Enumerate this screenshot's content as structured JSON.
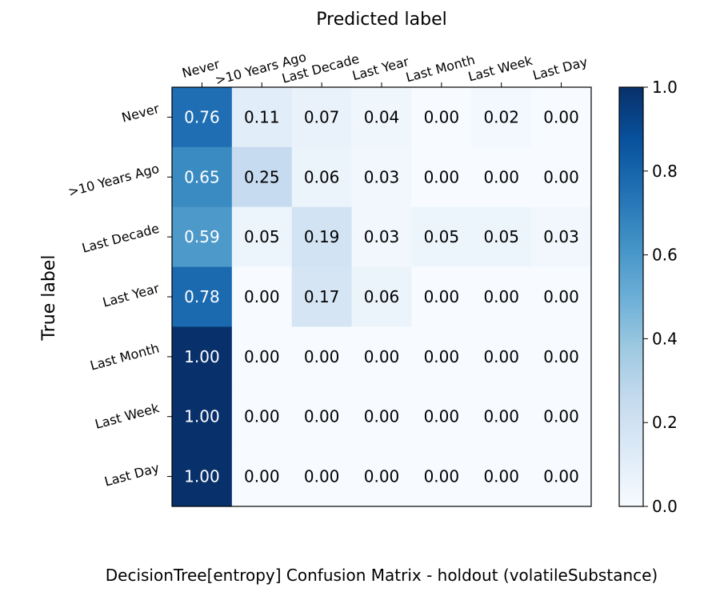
{
  "chart_data": {
    "type": "heatmap",
    "title": "DecisionTree[entropy] Confusion Matrix - holdout (volatileSubstance)",
    "xlabel": "Predicted label",
    "ylabel": "True label",
    "x_categories": [
      "Never",
      ">10 Years Ago",
      "Last Decade",
      "Last Year",
      "Last Month",
      "Last Week",
      "Last Day"
    ],
    "y_categories": [
      "Never",
      ">10 Years Ago",
      "Last Decade",
      "Last Year",
      "Last Month",
      "Last Week",
      "Last Day"
    ],
    "values": [
      [
        0.76,
        0.11,
        0.07,
        0.04,
        0.0,
        0.02,
        0.0
      ],
      [
        0.65,
        0.25,
        0.06,
        0.03,
        0.0,
        0.0,
        0.0
      ],
      [
        0.59,
        0.05,
        0.19,
        0.03,
        0.05,
        0.05,
        0.03
      ],
      [
        0.78,
        0.0,
        0.17,
        0.06,
        0.0,
        0.0,
        0.0
      ],
      [
        1.0,
        0.0,
        0.0,
        0.0,
        0.0,
        0.0,
        0.0
      ],
      [
        1.0,
        0.0,
        0.0,
        0.0,
        0.0,
        0.0,
        0.0
      ],
      [
        1.0,
        0.0,
        0.0,
        0.0,
        0.0,
        0.0,
        0.0
      ]
    ],
    "value_format": "0.00",
    "colormap": "Blues",
    "colorbar": {
      "range": [
        0.0,
        1.0
      ],
      "ticks": [
        "0.0",
        "0.2",
        "0.4",
        "0.6",
        "0.8",
        "1.0"
      ]
    },
    "x_axis_position": "top",
    "grid": false
  }
}
